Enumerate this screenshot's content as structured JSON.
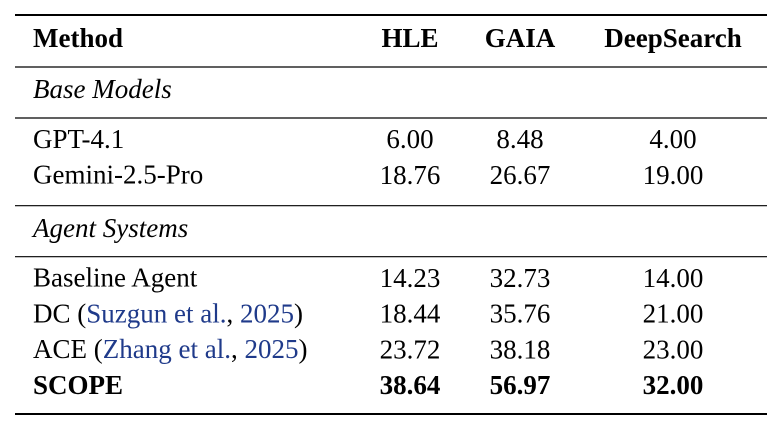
{
  "table": {
    "columns": [
      "Method",
      "HLE",
      "GAIA",
      "DeepSearch"
    ],
    "sections": [
      {
        "title": "Base Models",
        "rows": [
          {
            "method": [
              {
                "text": "GPT-4.1"
              }
            ],
            "values": [
              "6.00",
              "8.48",
              "4.00"
            ]
          },
          {
            "method": [
              {
                "text": "Gemini-2.5-Pro"
              }
            ],
            "values": [
              "18.76",
              "26.67",
              "19.00"
            ]
          }
        ]
      },
      {
        "title": "Agent Systems",
        "rows": [
          {
            "method": [
              {
                "text": "Baseline Agent"
              }
            ],
            "values": [
              "14.23",
              "32.73",
              "14.00"
            ]
          },
          {
            "method": [
              {
                "text": "DC ("
              },
              {
                "text": "Suzgun et al.",
                "link": true
              },
              {
                "text": ", "
              },
              {
                "text": "2025",
                "link": true
              },
              {
                "text": ")"
              }
            ],
            "values": [
              "18.44",
              "35.76",
              "21.00"
            ]
          },
          {
            "method": [
              {
                "text": "ACE ("
              },
              {
                "text": "Zhang et al.",
                "link": true
              },
              {
                "text": ", "
              },
              {
                "text": "2025",
                "link": true
              },
              {
                "text": ")"
              }
            ],
            "values": [
              "23.72",
              "38.18",
              "23.00"
            ]
          },
          {
            "method": [
              {
                "text": "SCOPE"
              }
            ],
            "values": [
              "38.64",
              "56.97",
              "32.00"
            ],
            "bold": true
          }
        ]
      }
    ]
  }
}
